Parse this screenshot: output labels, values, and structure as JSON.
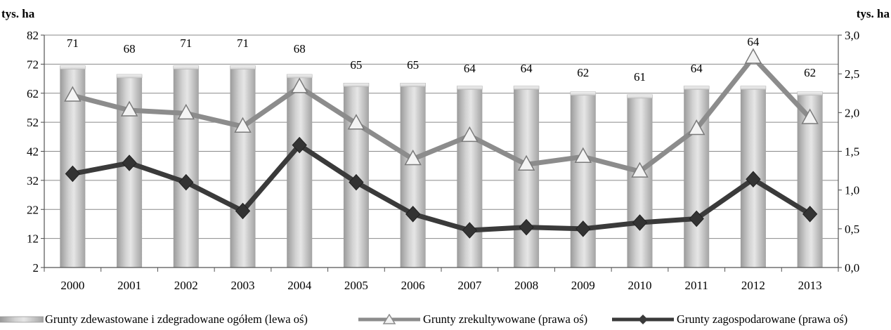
{
  "chart_data": {
    "type": "bar+line",
    "categories": [
      "2000",
      "2001",
      "2002",
      "2003",
      "2004",
      "2005",
      "2006",
      "2007",
      "2008",
      "2009",
      "2010",
      "2011",
      "2012",
      "2013"
    ],
    "left_axis": {
      "unit": "tys. ha",
      "min": 2,
      "max": 82,
      "ticks": [
        "2",
        "12",
        "22",
        "32",
        "42",
        "52",
        "62",
        "72",
        "82"
      ]
    },
    "right_axis": {
      "unit": "tys. ha",
      "min": 0,
      "max": 3,
      "ticks": [
        "0,0",
        "0,5",
        "1,0",
        "1,5",
        "2,0",
        "2,5",
        "3,0"
      ]
    },
    "grid": true,
    "legend_position": "bottom",
    "series": [
      {
        "name": "Grunty zdewastowane i zdegradowane ogółem (lewa oś)",
        "kind": "bar",
        "axis": "left",
        "color": "#bdbdbd",
        "values": [
          71,
          68,
          71,
          71,
          68,
          65,
          65,
          64,
          64,
          62,
          61,
          64,
          64,
          62
        ],
        "labels": [
          "71",
          "68",
          "71",
          "71",
          "68",
          "65",
          "65",
          "64",
          "64",
          "62",
          "61",
          "64",
          "64",
          "62"
        ]
      },
      {
        "name": "Grunty zrekultywowane (prawa oś)",
        "kind": "line",
        "marker": "triangle",
        "axis": "right",
        "color": "#8c8c8c",
        "values": [
          2.22,
          2.03,
          1.99,
          1.82,
          2.33,
          1.86,
          1.4,
          1.7,
          1.33,
          1.43,
          1.24,
          1.79,
          2.71,
          1.93
        ]
      },
      {
        "name": "Grunty zagospodarowane (prawa oś)",
        "kind": "line",
        "marker": "diamond",
        "axis": "right",
        "color": "#3a3a3a",
        "values": [
          1.21,
          1.35,
          1.1,
          0.73,
          1.58,
          1.1,
          0.69,
          0.48,
          0.52,
          0.5,
          0.58,
          0.63,
          1.14,
          0.69
        ]
      }
    ]
  }
}
